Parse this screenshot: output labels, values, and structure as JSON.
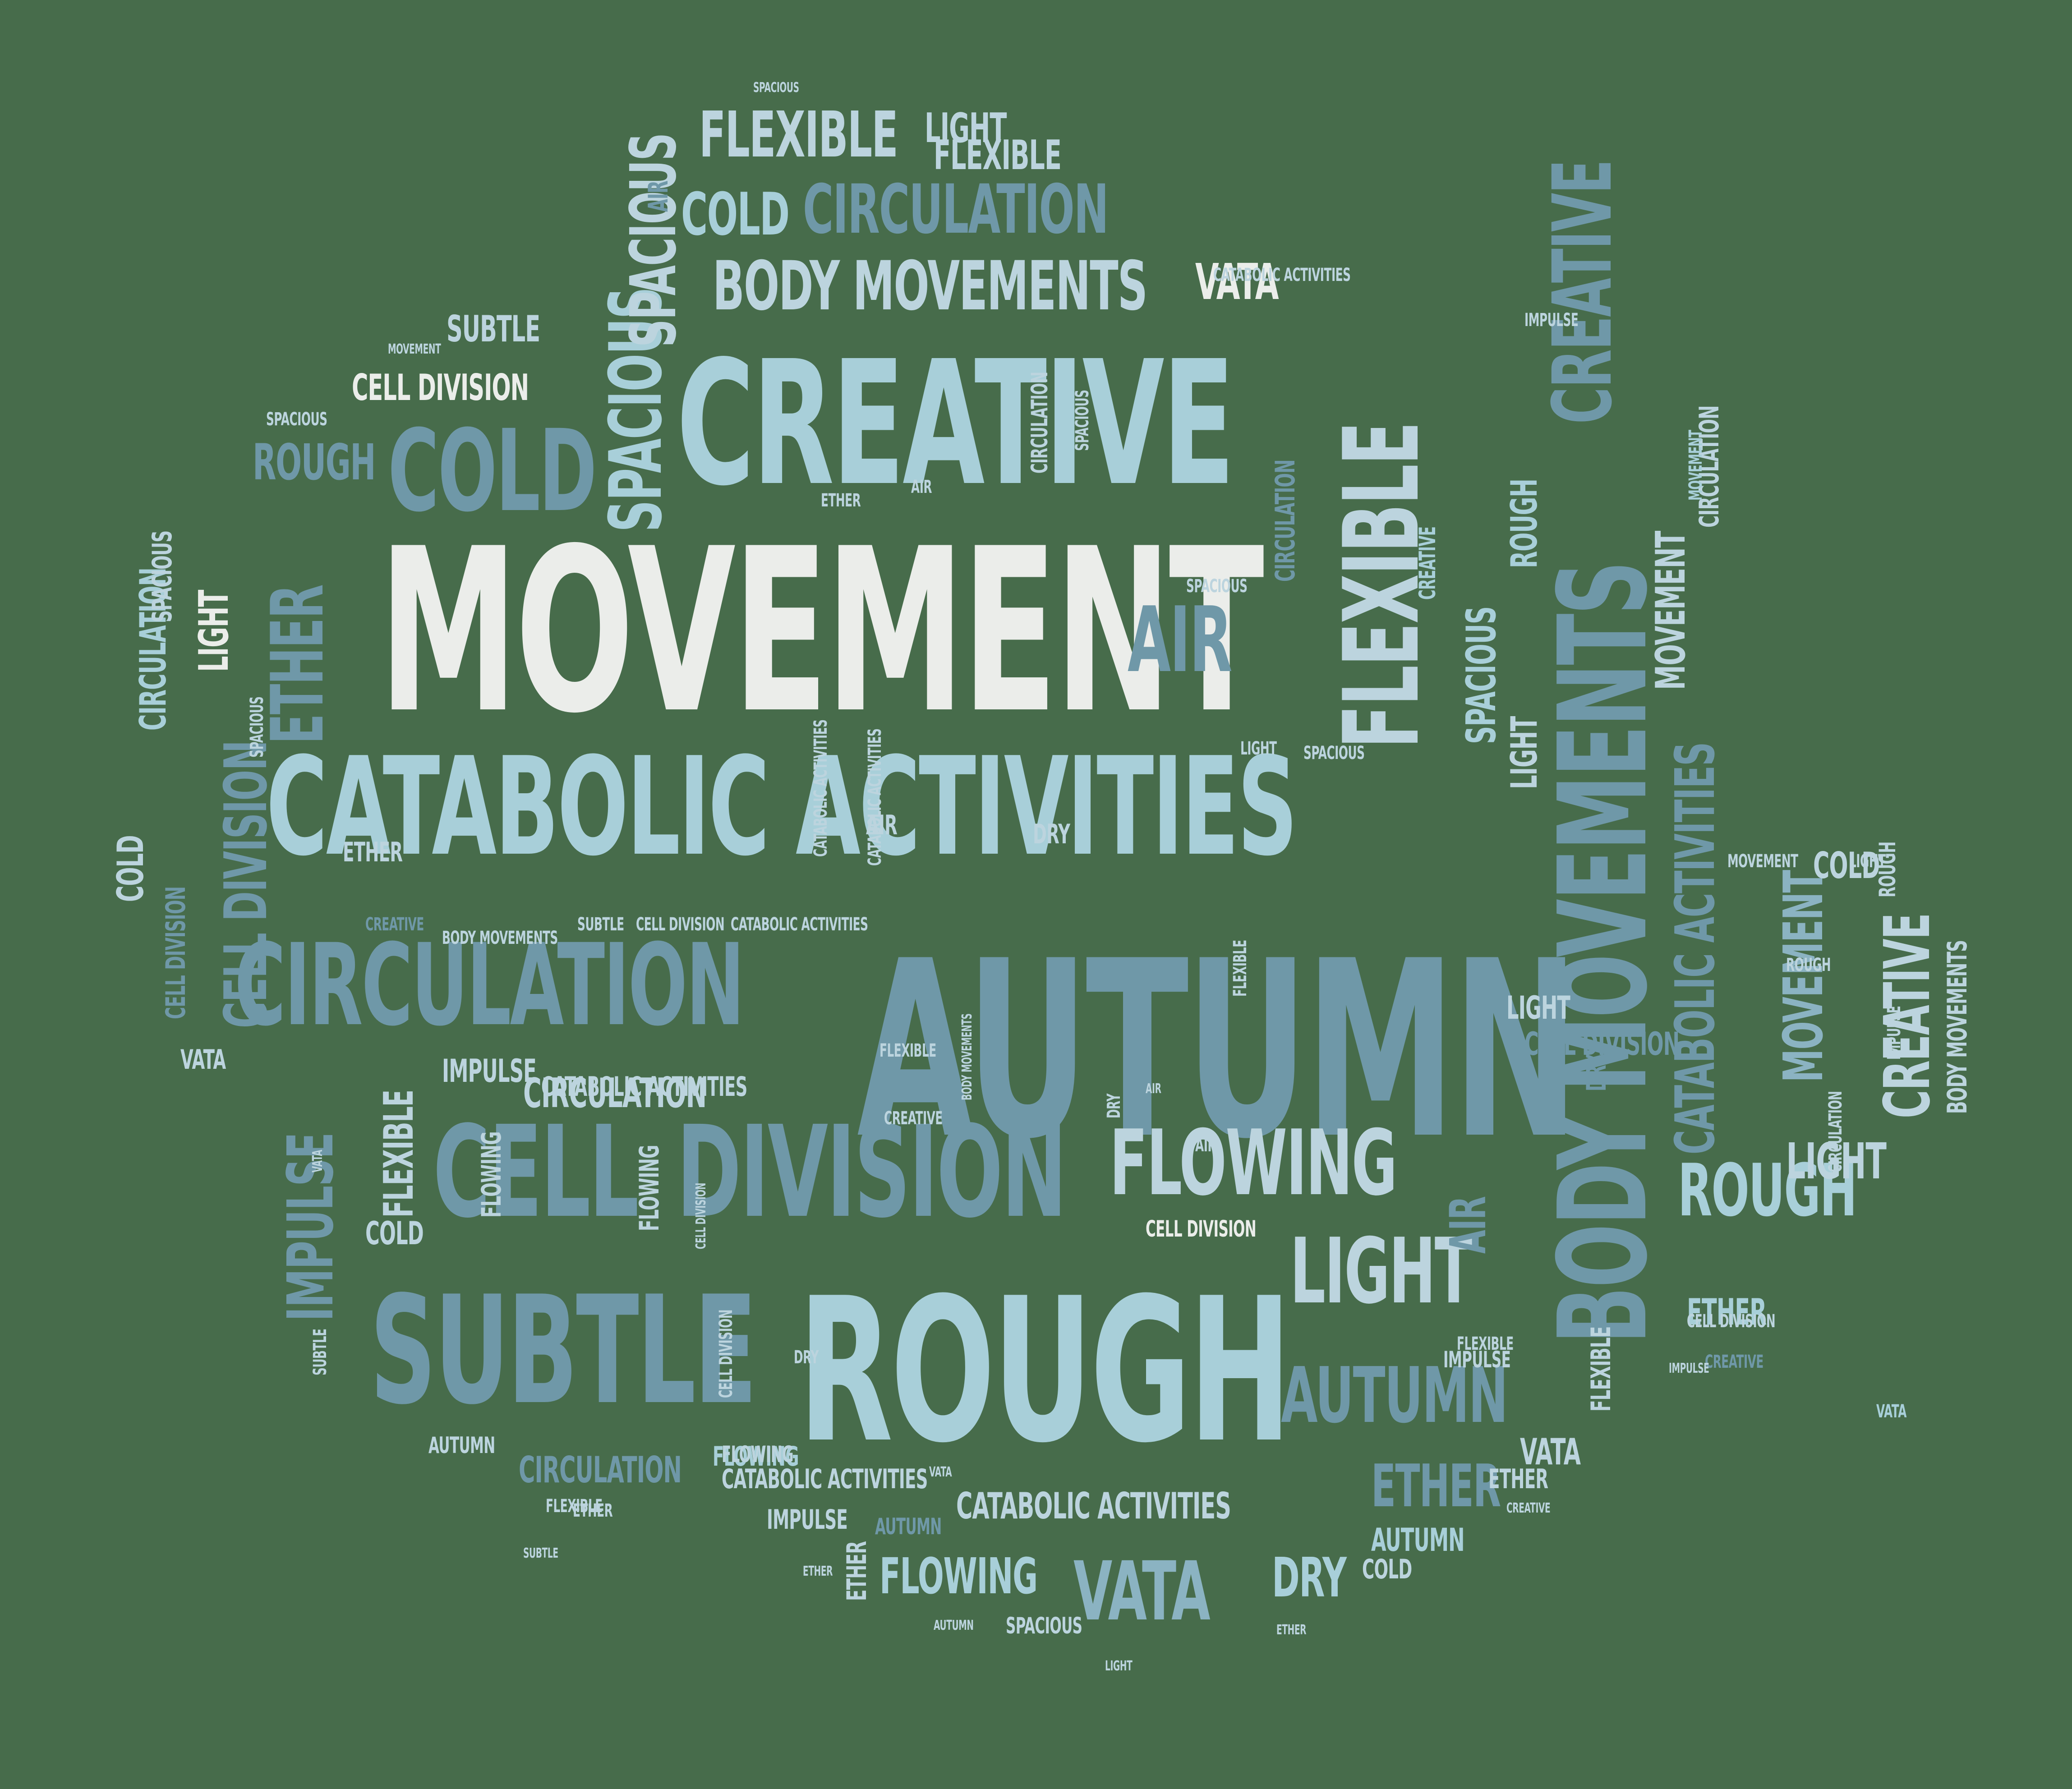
{
  "background_color": "#476c4b",
  "palette": {
    "white": "#ebedea",
    "pale": "#bcd4de",
    "light": "#a8cfd9",
    "mid": "#8bb3c2",
    "steel": "#6f98a8",
    "dark": "#5a8796"
  },
  "words": [
    {
      "text": "MOVEMENT",
      "color": "white"
    },
    {
      "text": "CREATIVE",
      "color": "light"
    },
    {
      "text": "AUTUMN",
      "color": "steel"
    },
    {
      "text": "CATABOLIC ACTIVITIES",
      "color": "light"
    },
    {
      "text": "BODY MOVEMENTS",
      "color": "steel"
    },
    {
      "text": "ROUGH",
      "color": "light"
    },
    {
      "text": "SUBTLE",
      "color": "steel"
    },
    {
      "text": "DIVISION",
      "color": "steel"
    },
    {
      "text": "CELL",
      "color": "steel"
    },
    {
      "text": "CIRCULATION",
      "color": "steel"
    },
    {
      "text": "FLEXIBLE",
      "color": "pale"
    },
    {
      "text": "FLOWING",
      "color": "pale"
    },
    {
      "text": "COLD",
      "color": "steel"
    },
    {
      "text": "AIR",
      "color": "steel"
    },
    {
      "text": "ETHER",
      "color": "steel"
    },
    {
      "text": "SPACIOUS",
      "color": "light"
    },
    {
      "text": "LIGHT",
      "color": "pale"
    },
    {
      "text": "VATA",
      "color": "mid"
    },
    {
      "text": "CATABOLIC ACTIVITIES",
      "color": "steel"
    },
    {
      "text": "AUTUMN",
      "color": "steel"
    },
    {
      "text": "ROUGH",
      "color": "light"
    },
    {
      "text": "BODY MOVEMENTS",
      "color": "pale"
    },
    {
      "text": "CIRCULATION",
      "color": "steel"
    },
    {
      "text": "FLEXIBLE",
      "color": "pale"
    },
    {
      "text": "COLD",
      "color": "light"
    },
    {
      "text": "CELL DIVISION",
      "color": "steel"
    },
    {
      "text": "IMPULSE",
      "color": "steel"
    },
    {
      "text": "ETHER",
      "color": "steel"
    },
    {
      "text": "MOVEMENT",
      "color": "mid"
    },
    {
      "text": "CREATIVE",
      "color": "steel"
    },
    {
      "text": "SPACIOUS",
      "color": "pale"
    },
    {
      "text": "CREATIVE",
      "color": "pale"
    },
    {
      "text": "ETHER",
      "color": "light"
    },
    {
      "text": "CATABOLIC ACTIVITIES",
      "color": "pale"
    },
    {
      "text": "FLOWING",
      "color": "light"
    },
    {
      "text": "VATA",
      "color": "white"
    },
    {
      "text": "ROUGH",
      "color": "steel"
    },
    {
      "text": "CELL DIVISION",
      "color": "white"
    },
    {
      "text": "SUBTLE",
      "color": "pale"
    },
    {
      "text": "LIGHT",
      "color": "pale"
    },
    {
      "text": "DRY",
      "color": "light"
    },
    {
      "text": "ROUGH",
      "color": "light"
    },
    {
      "text": "LIGHT",
      "color": "white"
    },
    {
      "text": "SPACIOUS",
      "color": "light"
    },
    {
      "text": "LIGHT",
      "color": "pale"
    },
    {
      "text": "FLEXIBLE",
      "color": "pale"
    },
    {
      "text": "AIR",
      "color": "steel"
    },
    {
      "text": "CIRCULATION",
      "color": "light"
    },
    {
      "text": "CIRCULATION",
      "color": "pale"
    },
    {
      "text": "CELL DIVISION",
      "color": "steel"
    },
    {
      "text": "COLD",
      "color": "pale"
    },
    {
      "text": "LIGHT",
      "color": "pale"
    },
    {
      "text": "SPACIOUS",
      "color": "pale"
    },
    {
      "text": "VATA",
      "color": "pale"
    },
    {
      "text": "COLD",
      "color": "pale"
    },
    {
      "text": "MOVEMENT",
      "color": "pale"
    },
    {
      "text": "COLD",
      "color": "pale"
    },
    {
      "text": "CELL DIVISION",
      "color": "steel"
    },
    {
      "text": "CIRCULATION",
      "color": "pale"
    },
    {
      "text": "CATABOLIC ACTIVITIES",
      "color": "pale"
    },
    {
      "text": "IMPULSE",
      "color": "pale"
    },
    {
      "text": "FLEXIBLE",
      "color": "pale"
    },
    {
      "text": "FLOWING",
      "color": "pale"
    },
    {
      "text": "CELL DIVISION",
      "color": "white"
    },
    {
      "text": "AIR",
      "color": "steel"
    },
    {
      "text": "CATABOLIC ACTIVITIES",
      "color": "pale"
    },
    {
      "text": "IMPULSE",
      "color": "pale"
    },
    {
      "text": "AUTUMN",
      "color": "pale"
    },
    {
      "text": "ETHER",
      "color": "pale"
    },
    {
      "text": "FLOWING",
      "color": "light"
    },
    {
      "text": "VATA",
      "color": "light"
    },
    {
      "text": "DRY",
      "color": "steel"
    },
    {
      "text": "AUTUMN",
      "color": "light"
    },
    {
      "text": "COLD",
      "color": "pale"
    },
    {
      "text": "ETHER",
      "color": "pale"
    },
    {
      "text": "AUTUMN",
      "color": "steel"
    },
    {
      "text": "CIRCULATION",
      "color": "steel"
    },
    {
      "text": "FLEXIBLE",
      "color": "pale"
    },
    {
      "text": "FLOWING",
      "color": "pale"
    },
    {
      "text": "SPACIOUS",
      "color": "pale"
    },
    {
      "text": "ETHER",
      "color": "pale"
    },
    {
      "text": "CREATIVE",
      "color": "steel"
    },
    {
      "text": "BODY MOVEMENTS",
      "color": "pale"
    },
    {
      "text": "FLEXIBLE",
      "color": "pale"
    },
    {
      "text": "ROUGH",
      "color": "pale"
    },
    {
      "text": "LIGHT",
      "color": "pale"
    },
    {
      "text": "CIRCULATION",
      "color": "steel"
    },
    {
      "text": "CREATIVE",
      "color": "light"
    },
    {
      "text": "MOVEMENT",
      "color": "light"
    },
    {
      "text": "SPACIOUS",
      "color": "pale"
    },
    {
      "text": "BODY MOVEMENTS",
      "color": "pale"
    },
    {
      "text": "SUBTLE",
      "color": "pale"
    },
    {
      "text": "CELL DIVISION",
      "color": "pale"
    },
    {
      "text": "CATABOLIC ACTIVITIES",
      "color": "pale"
    },
    {
      "text": "CREATIVE",
      "color": "steel"
    },
    {
      "text": "FLOWING",
      "color": "pale"
    },
    {
      "text": "IMPULSE",
      "color": "pale"
    },
    {
      "text": "MOVEMENT",
      "color": "pale"
    },
    {
      "text": "CELL DIVISION",
      "color": "pale"
    },
    {
      "text": "CATABOLIC ACTIVITIES",
      "color": "pale"
    },
    {
      "text": "CREATIVE",
      "color": "pale"
    },
    {
      "text": "SPACIOUS",
      "color": "pale"
    },
    {
      "text": "SUBTLE",
      "color": "pale"
    },
    {
      "text": "AIR",
      "color": "pale"
    },
    {
      "text": "ETHER",
      "color": "pale"
    },
    {
      "text": "DRY",
      "color": "pale"
    },
    {
      "text": "LIGHT",
      "color": "pale"
    },
    {
      "text": "IMPULSE",
      "color": "pale"
    },
    {
      "text": "VATA",
      "color": "pale"
    },
    {
      "text": "ETHER",
      "color": "pale"
    },
    {
      "text": "AIR",
      "color": "pale"
    },
    {
      "text": "CATABOLIC ACTIVITIES",
      "color": "pale"
    },
    {
      "text": "CATABOLIC ACTIVITIES",
      "color": "pale"
    },
    {
      "text": "LIGHT",
      "color": "pale"
    },
    {
      "text": "ROUGH",
      "color": "pale"
    },
    {
      "text": "FLEXIBLE",
      "color": "pale"
    },
    {
      "text": "DRY",
      "color": "pale"
    },
    {
      "text": "SPACIOUS",
      "color": "pale"
    },
    {
      "text": "FLEXIBLE",
      "color": "pale"
    },
    {
      "text": "CELL DIVISION",
      "color": "pale"
    },
    {
      "text": "ETHER",
      "color": "pale"
    },
    {
      "text": "AIR",
      "color": "pale"
    },
    {
      "text": "DRY",
      "color": "pale"
    },
    {
      "text": "CIRCULATION",
      "color": "pale"
    },
    {
      "text": "SPACIOUS",
      "color": "pale"
    },
    {
      "text": "CREATIVE",
      "color": "pale"
    },
    {
      "text": "AIR",
      "color": "pale"
    },
    {
      "text": "IMPULSE",
      "color": "pale"
    },
    {
      "text": "SUBTLE",
      "color": "pale"
    },
    {
      "text": "AUTUMN",
      "color": "pale"
    },
    {
      "text": "ETHER",
      "color": "pale"
    },
    {
      "text": "BODY MOVEMENTS",
      "color": "pale"
    },
    {
      "text": "FLEXIBLE",
      "color": "pale"
    },
    {
      "text": "SPACIOUS",
      "color": "pale"
    },
    {
      "text": "MOVEMENT",
      "color": "pale"
    },
    {
      "text": "CIRCULATION",
      "color": "pale"
    },
    {
      "text": "VATA",
      "color": "pale"
    },
    {
      "text": "LIGHT",
      "color": "pale"
    },
    {
      "text": "CELL DIVISION",
      "color": "pale"
    },
    {
      "text": "SPACIOUS",
      "color": "pale"
    },
    {
      "text": "IMPULSE",
      "color": "pale"
    },
    {
      "text": "VATA",
      "color": "pale"
    }
  ]
}
